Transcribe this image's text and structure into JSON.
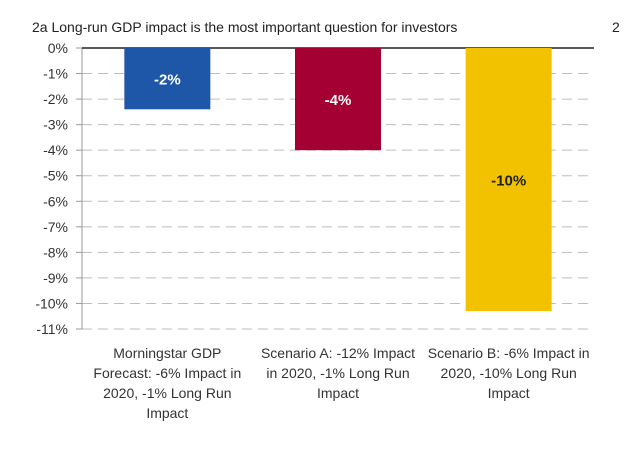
{
  "chart_data": {
    "type": "bar",
    "title": "2a Long-run GDP impact is the most important question for investors",
    "side_label": "2",
    "xlabel": "",
    "ylabel": "",
    "ylim": [
      -11,
      0
    ],
    "yticks": [
      0,
      -1,
      -2,
      -3,
      -4,
      -5,
      -6,
      -7,
      -8,
      -9,
      -10,
      -11
    ],
    "ytick_labels": [
      "0%",
      "-1%",
      "-2%",
      "-3%",
      "-4%",
      "-5%",
      "-6%",
      "-7%",
      "-8%",
      "-9%",
      "-10%",
      "-11%"
    ],
    "grid": true,
    "categories": [
      [
        "Morningstar GDP",
        "Forecast: -6% Impact in",
        "2020, -1% Long Run",
        "Impact"
      ],
      [
        "Scenario A: -12% Impact",
        "in 2020, -1% Long Run",
        "Impact"
      ],
      [
        "Scenario B: -6% Impact in",
        "2020, -10% Long Run",
        "Impact"
      ]
    ],
    "values": [
      -2.4,
      -4.0,
      -10.3
    ],
    "data_labels": [
      "-2%",
      "-4%",
      "-10%"
    ],
    "colors": [
      "#1f57a8",
      "#a50034",
      "#f2c200"
    ],
    "label_colors": [
      "#ffffff",
      "#ffffff",
      "#222222"
    ]
  }
}
